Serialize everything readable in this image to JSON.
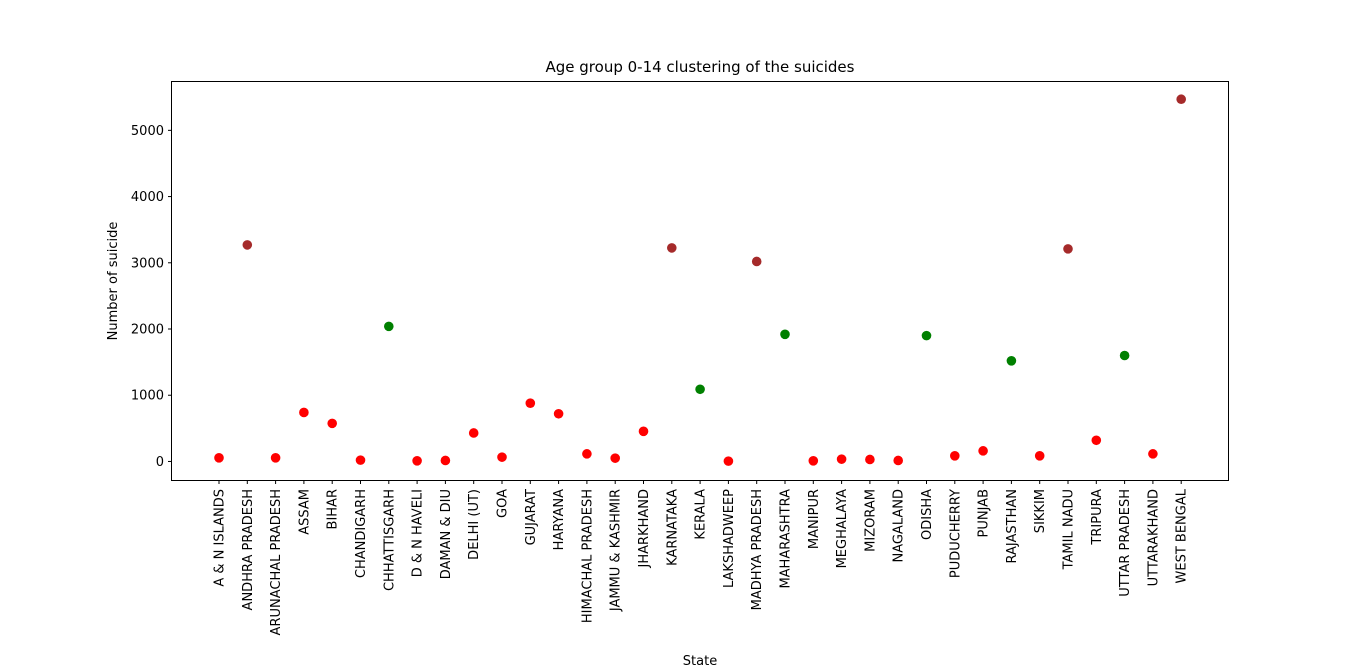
{
  "chart_data": {
    "type": "scatter",
    "title": "Age group 0-14 clustering of the suicides",
    "xlabel": "State",
    "ylabel": "Number of suicide",
    "ylim": [
      -280,
      5730
    ],
    "yticks": [
      0,
      1000,
      2000,
      3000,
      4000,
      5000
    ],
    "grid": false,
    "categories": [
      "A & N ISLANDS",
      "ANDHRA PRADESH",
      "ARUNACHAL PRADESH",
      "ASSAM",
      "BIHAR",
      "CHANDIGARH",
      "CHHATTISGARH",
      "D & N HAVELI",
      "DAMAN & DIU",
      "DELHI (UT)",
      "GOA",
      "GUJARAT",
      "HARYANA",
      "HIMACHAL PRADESH",
      "JAMMU & KASHMIR",
      "JHARKHAND",
      "KARNATAKA",
      "KERALA",
      "LAKSHADWEEP",
      "MADHYA PRADESH",
      "MAHARASHTRA",
      "MANIPUR",
      "MEGHALAYA",
      "MIZORAM",
      "NAGALAND",
      "ODISHA",
      "PUDUCHERRY",
      "PUNJAB",
      "RAJASTHAN",
      "SIKKIM",
      "TAMIL NADU",
      "TRIPURA",
      "UTTAR PRADESH",
      "UTTARAKHAND",
      "WEST BENGAL"
    ],
    "values": [
      55,
      3270,
      55,
      740,
      575,
      20,
      2040,
      10,
      15,
      430,
      65,
      880,
      720,
      115,
      50,
      455,
      3225,
      1090,
      5,
      3020,
      1920,
      10,
      35,
      30,
      15,
      1900,
      85,
      160,
      1520,
      85,
      3210,
      320,
      1600,
      115,
      5470
    ],
    "clusters": [
      0,
      2,
      0,
      0,
      0,
      0,
      1,
      0,
      0,
      0,
      0,
      0,
      0,
      0,
      0,
      0,
      2,
      1,
      0,
      2,
      1,
      0,
      0,
      0,
      0,
      1,
      0,
      0,
      1,
      0,
      2,
      0,
      1,
      0,
      2
    ],
    "cluster_colors": [
      "#ff0000",
      "#008000",
      "#a52a2a"
    ]
  }
}
